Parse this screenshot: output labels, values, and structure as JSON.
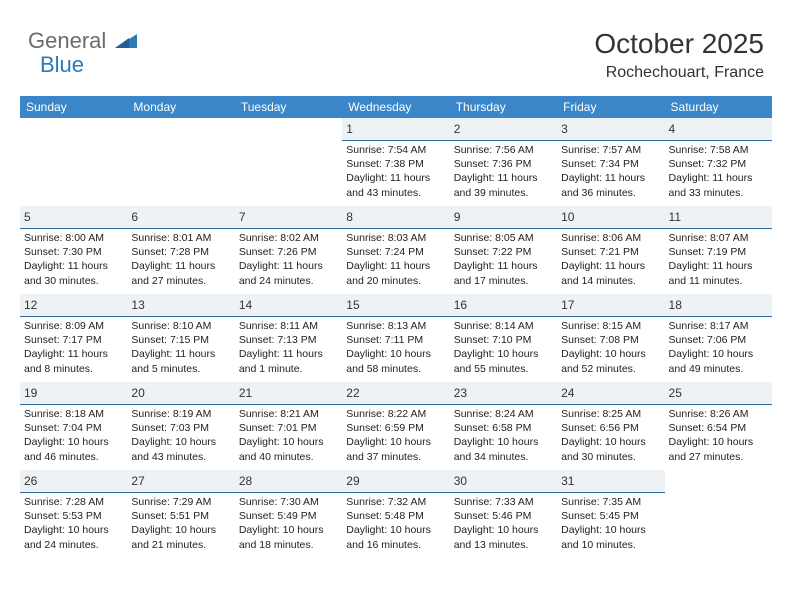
{
  "brand": {
    "part1": "General",
    "part2": "Blue"
  },
  "title": "October 2025",
  "location": "Rochechouart, France",
  "colors": {
    "header_bg": "#3a86c8",
    "header_text": "#ffffff",
    "daynum_bg": "#eef2f5",
    "daynum_border": "#2f6aa0",
    "brand_gray": "#6b6b6b",
    "brand_blue": "#2a7ab9"
  },
  "day_headers": [
    "Sunday",
    "Monday",
    "Tuesday",
    "Wednesday",
    "Thursday",
    "Friday",
    "Saturday"
  ],
  "weeks": [
    [
      null,
      null,
      null,
      {
        "n": "1",
        "sr": "Sunrise: 7:54 AM",
        "ss": "Sunset: 7:38 PM",
        "d1": "Daylight: 11 hours",
        "d2": "and 43 minutes."
      },
      {
        "n": "2",
        "sr": "Sunrise: 7:56 AM",
        "ss": "Sunset: 7:36 PM",
        "d1": "Daylight: 11 hours",
        "d2": "and 39 minutes."
      },
      {
        "n": "3",
        "sr": "Sunrise: 7:57 AM",
        "ss": "Sunset: 7:34 PM",
        "d1": "Daylight: 11 hours",
        "d2": "and 36 minutes."
      },
      {
        "n": "4",
        "sr": "Sunrise: 7:58 AM",
        "ss": "Sunset: 7:32 PM",
        "d1": "Daylight: 11 hours",
        "d2": "and 33 minutes."
      }
    ],
    [
      {
        "n": "5",
        "sr": "Sunrise: 8:00 AM",
        "ss": "Sunset: 7:30 PM",
        "d1": "Daylight: 11 hours",
        "d2": "and 30 minutes."
      },
      {
        "n": "6",
        "sr": "Sunrise: 8:01 AM",
        "ss": "Sunset: 7:28 PM",
        "d1": "Daylight: 11 hours",
        "d2": "and 27 minutes."
      },
      {
        "n": "7",
        "sr": "Sunrise: 8:02 AM",
        "ss": "Sunset: 7:26 PM",
        "d1": "Daylight: 11 hours",
        "d2": "and 24 minutes."
      },
      {
        "n": "8",
        "sr": "Sunrise: 8:03 AM",
        "ss": "Sunset: 7:24 PM",
        "d1": "Daylight: 11 hours",
        "d2": "and 20 minutes."
      },
      {
        "n": "9",
        "sr": "Sunrise: 8:05 AM",
        "ss": "Sunset: 7:22 PM",
        "d1": "Daylight: 11 hours",
        "d2": "and 17 minutes."
      },
      {
        "n": "10",
        "sr": "Sunrise: 8:06 AM",
        "ss": "Sunset: 7:21 PM",
        "d1": "Daylight: 11 hours",
        "d2": "and 14 minutes."
      },
      {
        "n": "11",
        "sr": "Sunrise: 8:07 AM",
        "ss": "Sunset: 7:19 PM",
        "d1": "Daylight: 11 hours",
        "d2": "and 11 minutes."
      }
    ],
    [
      {
        "n": "12",
        "sr": "Sunrise: 8:09 AM",
        "ss": "Sunset: 7:17 PM",
        "d1": "Daylight: 11 hours",
        "d2": "and 8 minutes."
      },
      {
        "n": "13",
        "sr": "Sunrise: 8:10 AM",
        "ss": "Sunset: 7:15 PM",
        "d1": "Daylight: 11 hours",
        "d2": "and 5 minutes."
      },
      {
        "n": "14",
        "sr": "Sunrise: 8:11 AM",
        "ss": "Sunset: 7:13 PM",
        "d1": "Daylight: 11 hours",
        "d2": "and 1 minute."
      },
      {
        "n": "15",
        "sr": "Sunrise: 8:13 AM",
        "ss": "Sunset: 7:11 PM",
        "d1": "Daylight: 10 hours",
        "d2": "and 58 minutes."
      },
      {
        "n": "16",
        "sr": "Sunrise: 8:14 AM",
        "ss": "Sunset: 7:10 PM",
        "d1": "Daylight: 10 hours",
        "d2": "and 55 minutes."
      },
      {
        "n": "17",
        "sr": "Sunrise: 8:15 AM",
        "ss": "Sunset: 7:08 PM",
        "d1": "Daylight: 10 hours",
        "d2": "and 52 minutes."
      },
      {
        "n": "18",
        "sr": "Sunrise: 8:17 AM",
        "ss": "Sunset: 7:06 PM",
        "d1": "Daylight: 10 hours",
        "d2": "and 49 minutes."
      }
    ],
    [
      {
        "n": "19",
        "sr": "Sunrise: 8:18 AM",
        "ss": "Sunset: 7:04 PM",
        "d1": "Daylight: 10 hours",
        "d2": "and 46 minutes."
      },
      {
        "n": "20",
        "sr": "Sunrise: 8:19 AM",
        "ss": "Sunset: 7:03 PM",
        "d1": "Daylight: 10 hours",
        "d2": "and 43 minutes."
      },
      {
        "n": "21",
        "sr": "Sunrise: 8:21 AM",
        "ss": "Sunset: 7:01 PM",
        "d1": "Daylight: 10 hours",
        "d2": "and 40 minutes."
      },
      {
        "n": "22",
        "sr": "Sunrise: 8:22 AM",
        "ss": "Sunset: 6:59 PM",
        "d1": "Daylight: 10 hours",
        "d2": "and 37 minutes."
      },
      {
        "n": "23",
        "sr": "Sunrise: 8:24 AM",
        "ss": "Sunset: 6:58 PM",
        "d1": "Daylight: 10 hours",
        "d2": "and 34 minutes."
      },
      {
        "n": "24",
        "sr": "Sunrise: 8:25 AM",
        "ss": "Sunset: 6:56 PM",
        "d1": "Daylight: 10 hours",
        "d2": "and 30 minutes."
      },
      {
        "n": "25",
        "sr": "Sunrise: 8:26 AM",
        "ss": "Sunset: 6:54 PM",
        "d1": "Daylight: 10 hours",
        "d2": "and 27 minutes."
      }
    ],
    [
      {
        "n": "26",
        "sr": "Sunrise: 7:28 AM",
        "ss": "Sunset: 5:53 PM",
        "d1": "Daylight: 10 hours",
        "d2": "and 24 minutes."
      },
      {
        "n": "27",
        "sr": "Sunrise: 7:29 AM",
        "ss": "Sunset: 5:51 PM",
        "d1": "Daylight: 10 hours",
        "d2": "and 21 minutes."
      },
      {
        "n": "28",
        "sr": "Sunrise: 7:30 AM",
        "ss": "Sunset: 5:49 PM",
        "d1": "Daylight: 10 hours",
        "d2": "and 18 minutes."
      },
      {
        "n": "29",
        "sr": "Sunrise: 7:32 AM",
        "ss": "Sunset: 5:48 PM",
        "d1": "Daylight: 10 hours",
        "d2": "and 16 minutes."
      },
      {
        "n": "30",
        "sr": "Sunrise: 7:33 AM",
        "ss": "Sunset: 5:46 PM",
        "d1": "Daylight: 10 hours",
        "d2": "and 13 minutes."
      },
      {
        "n": "31",
        "sr": "Sunrise: 7:35 AM",
        "ss": "Sunset: 5:45 PM",
        "d1": "Daylight: 10 hours",
        "d2": "and 10 minutes."
      },
      null
    ]
  ]
}
